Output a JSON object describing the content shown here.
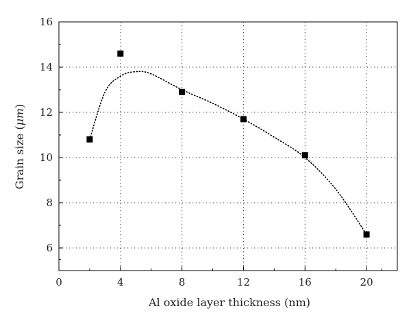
{
  "chart_data": {
    "type": "scatter",
    "xlabel": "Al oxide layer thickness (nm)",
    "ylabel_prefix": "Grain size (",
    "ylabel_unit": "μm",
    "ylabel_suffix": ")",
    "xlim": [
      0,
      22
    ],
    "ylim": [
      5,
      16
    ],
    "xticks": [
      0,
      4,
      8,
      12,
      16,
      20
    ],
    "yticks": [
      6,
      8,
      10,
      12,
      14,
      16
    ],
    "grid": true,
    "series": [
      {
        "marker": "square",
        "color": "#000000",
        "points": [
          {
            "x": 2,
            "y": 10.8
          },
          {
            "x": 4,
            "y": 14.6
          },
          {
            "x": 8,
            "y": 12.9
          },
          {
            "x": 12,
            "y": 11.7
          },
          {
            "x": 16,
            "y": 10.1
          },
          {
            "x": 20,
            "y": 6.6
          }
        ]
      }
    ],
    "fit_curve": {
      "style": "dotted",
      "color": "#000000",
      "points": [
        {
          "x": 2,
          "y": 10.8
        },
        {
          "x": 3,
          "y": 12.9
        },
        {
          "x": 4,
          "y": 13.6
        },
        {
          "x": 5,
          "y": 13.8
        },
        {
          "x": 6,
          "y": 13.7
        },
        {
          "x": 8,
          "y": 13.0
        },
        {
          "x": 10,
          "y": 12.4
        },
        {
          "x": 12,
          "y": 11.7
        },
        {
          "x": 14,
          "y": 10.9
        },
        {
          "x": 16,
          "y": 10.0
        },
        {
          "x": 18,
          "y": 8.6
        },
        {
          "x": 20,
          "y": 6.6
        }
      ]
    }
  }
}
